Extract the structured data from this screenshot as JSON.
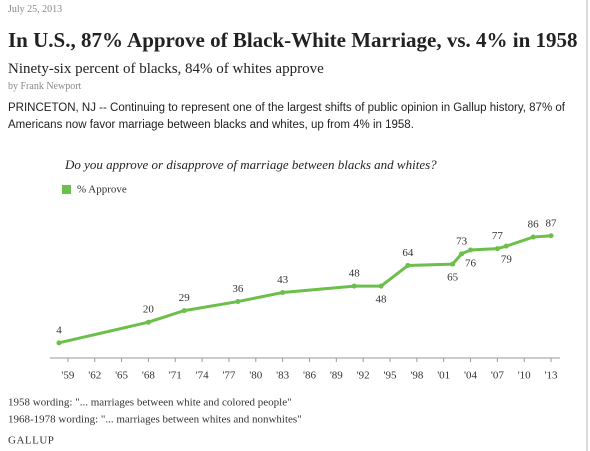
{
  "date": "July 25, 2013",
  "headline": "In U.S., 87% Approve of Black-White Marriage, vs. 4% in 1958",
  "subheadline": "Ninety-six percent of blacks, 84% of whites approve",
  "byline": "by Frank Newport",
  "lead": "PRINCETON, NJ -- Continuing to represent one of the largest shifts of public opinion in Gallup history, 87% of Americans now favor marriage between blacks and whites, up from 4% in 1958.",
  "chart_data": {
    "type": "line",
    "title": "Do you approve or disapprove of marriage between blacks and whites?",
    "x": [
      1958,
      1968,
      1972,
      1978,
      1983,
      1991,
      1994,
      1997,
      2002,
      2003,
      2004,
      2007,
      2008,
      2011,
      2013
    ],
    "series": [
      {
        "name": "% Approve",
        "color": "#6cbf4a",
        "values": [
          4,
          20,
          29,
          36,
          43,
          48,
          48,
          64,
          65,
          73,
          76,
          77,
          79,
          86,
          87
        ]
      }
    ],
    "xlim": [
      1957,
      2014
    ],
    "xticks": [
      {
        "value": 1959,
        "label": "'59"
      },
      {
        "value": 1962,
        "label": "'62"
      },
      {
        "value": 1965,
        "label": "'65"
      },
      {
        "value": 1968,
        "label": "'68"
      },
      {
        "value": 1971,
        "label": "'71"
      },
      {
        "value": 1974,
        "label": "'74"
      },
      {
        "value": 1977,
        "label": "'77"
      },
      {
        "value": 1980,
        "label": "'80"
      },
      {
        "value": 1983,
        "label": "'83"
      },
      {
        "value": 1986,
        "label": "'86"
      },
      {
        "value": 1989,
        "label": "'89"
      },
      {
        "value": 1992,
        "label": "'92"
      },
      {
        "value": 1995,
        "label": "'95"
      },
      {
        "value": 1998,
        "label": "'98"
      },
      {
        "value": 2001,
        "label": "'01"
      },
      {
        "value": 2004,
        "label": "'04"
      },
      {
        "value": 2007,
        "label": "'07"
      },
      {
        "value": 2010,
        "label": "'10"
      },
      {
        "value": 2013,
        "label": "'13"
      }
    ],
    "legend": "top-left",
    "notes": [
      "1958 wording: \"... marriages between white and colored people\"",
      "1968-1978 wording: \"... marriages between whites and nonwhites\""
    ],
    "source": "GALLUP"
  }
}
